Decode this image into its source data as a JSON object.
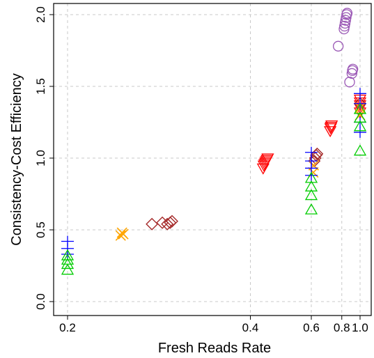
{
  "chart_data": {
    "type": "scatter",
    "xlabel": "Fresh Reads Rate",
    "ylabel": "Consistency-Cost Efficiency",
    "x_scale": "reciprocal",
    "xlim": [
      0.2,
      1.0
    ],
    "ylim": [
      0.0,
      2.0
    ],
    "x_ticks": [
      "0.2",
      "0.4",
      "0.6",
      "0.8",
      "1.0"
    ],
    "x_tick_values": [
      0.2,
      0.4,
      0.6,
      0.8,
      1.0
    ],
    "y_ticks": [
      "0.0",
      "0.5",
      "1.0",
      "1.5",
      "2.0"
    ],
    "y_tick_values": [
      0.0,
      0.5,
      1.0,
      1.5,
      2.0
    ],
    "grid": true,
    "series": [
      {
        "marker": "circle",
        "color": "#9b59b6",
        "points": [
          [
            0.77,
            1.78
          ],
          [
            0.875,
            1.53
          ],
          [
            0.9,
            1.59
          ],
          [
            0.905,
            1.61
          ],
          [
            0.91,
            1.62
          ],
          [
            0.82,
            1.9
          ],
          [
            0.825,
            1.92
          ],
          [
            0.83,
            1.94
          ],
          [
            0.835,
            1.96
          ],
          [
            0.84,
            1.98
          ],
          [
            0.845,
            2.0
          ],
          [
            0.85,
            2.01
          ]
        ]
      },
      {
        "marker": "triangle-down",
        "color": "#ff0000",
        "points": [
          [
            0.43,
            0.93
          ],
          [
            0.432,
            0.95
          ],
          [
            0.434,
            0.96
          ],
          [
            0.436,
            0.97
          ],
          [
            0.438,
            0.98
          ],
          [
            0.44,
            0.99
          ],
          [
            0.442,
            1.0
          ],
          [
            0.71,
            1.19
          ],
          [
            0.713,
            1.21
          ],
          [
            0.716,
            1.22
          ],
          [
            0.72,
            1.23
          ],
          [
            1.0,
            1.32
          ],
          [
            1.0,
            1.35
          ],
          [
            1.0,
            1.37
          ],
          [
            1.0,
            1.39
          ],
          [
            1.0,
            1.41
          ]
        ]
      },
      {
        "marker": "diamond",
        "color": "#a52a2a",
        "points": [
          [
            0.26,
            0.54
          ],
          [
            0.27,
            0.55
          ],
          [
            0.275,
            0.54
          ],
          [
            0.278,
            0.55
          ],
          [
            0.28,
            0.56
          ],
          [
            0.615,
            0.98
          ],
          [
            0.62,
            1.0
          ],
          [
            0.625,
            1.02
          ],
          [
            0.63,
            1.03
          ],
          [
            1.0,
            1.38
          ]
        ]
      },
      {
        "marker": "x",
        "color": "#ffa500",
        "points": [
          [
            0.234,
            0.46
          ],
          [
            0.235,
            0.48
          ],
          [
            0.236,
            0.47
          ],
          [
            0.61,
            0.9
          ],
          [
            0.612,
            0.95
          ],
          [
            1.0,
            1.3
          ],
          [
            1.0,
            1.35
          ]
        ]
      },
      {
        "marker": "plus",
        "color": "#0000ff",
        "points": [
          [
            0.2,
            0.42
          ],
          [
            0.2,
            0.37
          ],
          [
            0.2,
            0.33
          ],
          [
            0.6,
            1.04
          ],
          [
            0.6,
            0.98
          ],
          [
            0.6,
            0.93
          ],
          [
            0.6,
            0.88
          ],
          [
            1.0,
            1.18
          ],
          [
            1.0,
            1.25
          ],
          [
            1.0,
            1.38
          ],
          [
            1.0,
            1.45
          ]
        ]
      },
      {
        "marker": "triangle-up",
        "color": "#00cc00",
        "points": [
          [
            0.2,
            0.22
          ],
          [
            0.2,
            0.26
          ],
          [
            0.2,
            0.29
          ],
          [
            0.2,
            0.32
          ],
          [
            0.6,
            0.64
          ],
          [
            0.6,
            0.74
          ],
          [
            0.6,
            0.8
          ],
          [
            0.6,
            0.86
          ],
          [
            1.0,
            1.05
          ],
          [
            1.0,
            1.22
          ],
          [
            1.0,
            1.28
          ],
          [
            1.0,
            1.34
          ]
        ]
      }
    ]
  }
}
